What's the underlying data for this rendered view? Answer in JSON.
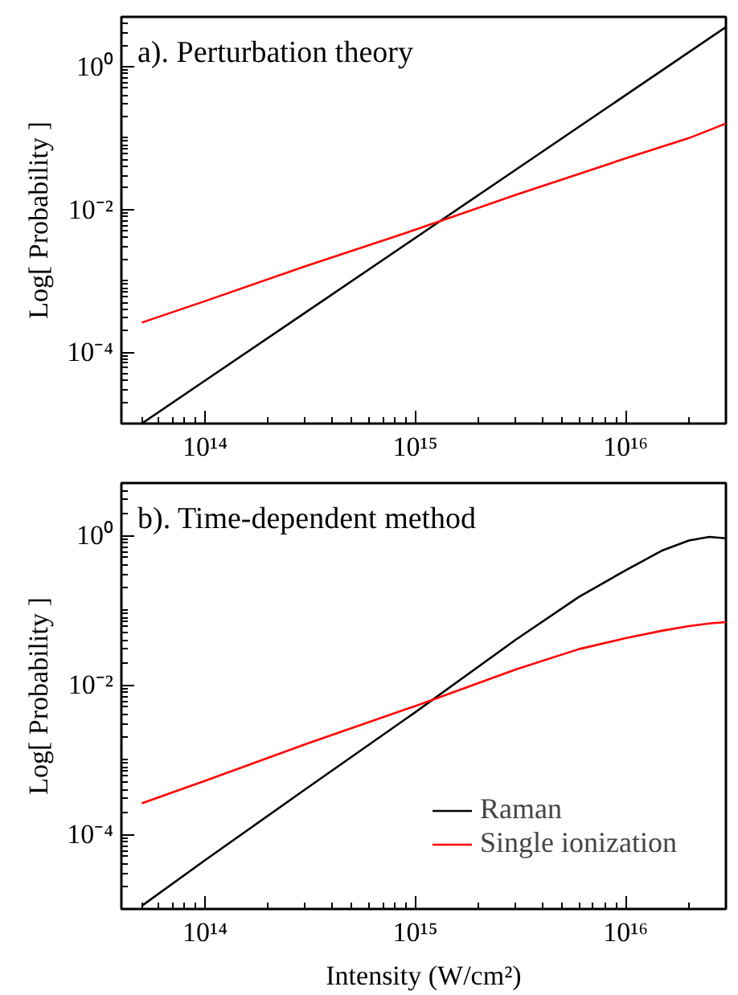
{
  "chart_data": [
    {
      "type": "line",
      "title": "a). Perturbation theory",
      "ylabel": "Log[ Probability ]",
      "log": "xy",
      "grid": false,
      "legend": false,
      "x": [
        50000000000000.0,
        100000000000000.0,
        300000000000000.0,
        1000000000000000.0,
        3000000000000000.0,
        1e+16,
        2e+16,
        3e+16
      ],
      "xlim": [
        40000000000000.0,
        3e+16
      ],
      "ylim": [
        1e-05,
        5
      ],
      "xticks": [
        {
          "value": 100000000000000.0,
          "label": "10¹⁴"
        },
        {
          "value": 1000000000000000.0,
          "label": "10¹⁵"
        },
        {
          "value": 1e+16,
          "label": "10¹⁶"
        }
      ],
      "yticks": [
        {
          "value": 0.0001,
          "label": "10⁻⁴"
        },
        {
          "value": 0.01,
          "label": "10⁻²"
        },
        {
          "value": 1,
          "label": "10⁰"
        }
      ],
      "series": [
        {
          "color": "#000000",
          "values": [
            1e-05,
            4e-05,
            0.00036,
            0.004,
            0.036,
            0.4,
            1.6,
            3.6
          ]
        },
        {
          "color": "#ff0000",
          "values": [
            0.00026,
            0.00052,
            0.0016,
            0.0052,
            0.016,
            0.052,
            0.1,
            0.16
          ]
        }
      ]
    },
    {
      "type": "line",
      "title": "b). Time-dependent method",
      "xlabel": "Intensity (W/cm²)",
      "ylabel": "Log[ Probability ]",
      "log": "xy",
      "grid": false,
      "legend": "bottom right",
      "x": [
        50000000000000.0,
        100000000000000.0,
        300000000000000.0,
        1000000000000000.0,
        3000000000000000.0,
        6000000000000000.0,
        1e+16,
        1.5e+16,
        2e+16,
        2.5e+16,
        3e+16
      ],
      "xlim": [
        40000000000000.0,
        3e+16
      ],
      "ylim": [
        1e-05,
        5
      ],
      "xticks": [
        {
          "value": 100000000000000.0,
          "label": "10¹⁴"
        },
        {
          "value": 1000000000000000.0,
          "label": "10¹⁵"
        },
        {
          "value": 1e+16,
          "label": "10¹⁶"
        }
      ],
      "yticks": [
        {
          "value": 0.0001,
          "label": "10⁻⁴"
        },
        {
          "value": 0.01,
          "label": "10⁻²"
        },
        {
          "value": 1,
          "label": "10⁰"
        }
      ],
      "series": [
        {
          "name": "Raman",
          "color": "#000000",
          "values": [
            1.1e-05,
            4.5e-05,
            0.0004,
            0.0043,
            0.04,
            0.15,
            0.34,
            0.63,
            0.85,
            0.95,
            0.91
          ]
        },
        {
          "name": "Single ionization",
          "color": "#ff0000",
          "values": [
            0.00026,
            0.00052,
            0.0016,
            0.0052,
            0.016,
            0.03,
            0.042,
            0.053,
            0.061,
            0.066,
            0.069
          ]
        }
      ]
    }
  ]
}
